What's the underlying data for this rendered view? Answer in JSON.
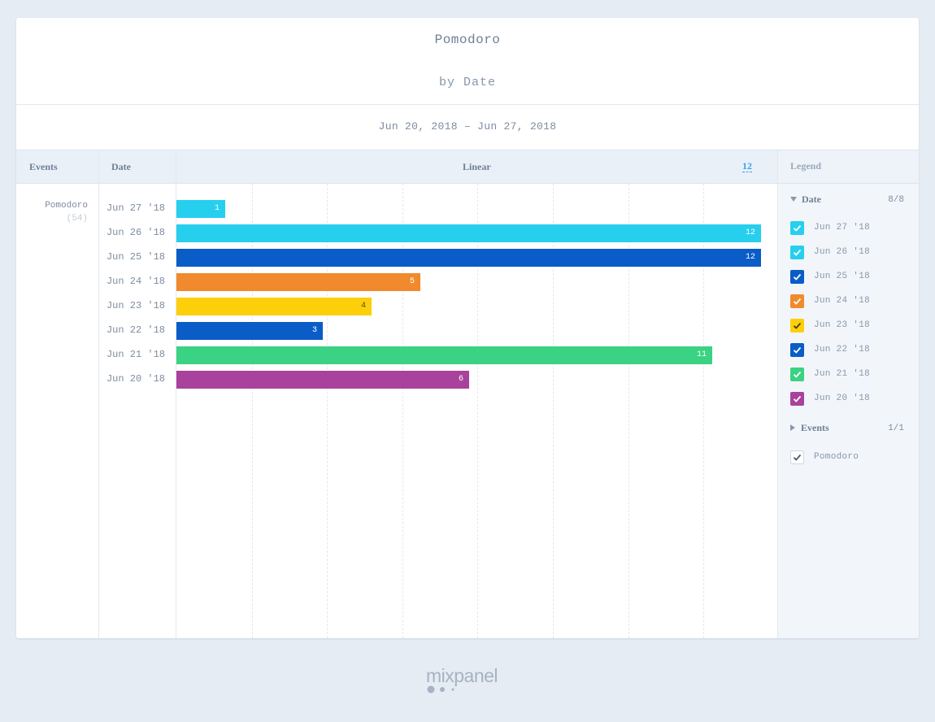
{
  "header": {
    "title": "Pomodoro",
    "subtitle": "by Date",
    "date_range": "Jun 20, 2018 – Jun 27, 2018"
  },
  "columns": {
    "events": "Events",
    "date": "Date",
    "scale": "Linear",
    "max": "12",
    "legend": "Legend"
  },
  "event": {
    "name": "Pomodoro",
    "count": "(54)"
  },
  "chart_data": {
    "type": "bar",
    "orientation": "horizontal",
    "title": "Pomodoro",
    "subtitle": "by Date",
    "categories": [
      "Jun 27 '18",
      "Jun 26 '18",
      "Jun 25 '18",
      "Jun 24 '18",
      "Jun 23 '18",
      "Jun 22 '18",
      "Jun 21 '18",
      "Jun 20 '18"
    ],
    "values": [
      1,
      12,
      12,
      5,
      4,
      3,
      11,
      6
    ],
    "colors": [
      "#26cfee",
      "#26cfee",
      "#0a5cc7",
      "#f08a2c",
      "#fdcf0b",
      "#0a5cc7",
      "#3ad283",
      "#a8429c"
    ],
    "xlim": [
      0,
      12
    ],
    "scale": "linear",
    "grid": true
  },
  "legend": {
    "date_header": "Date",
    "date_count": "8/8",
    "date_items": [
      {
        "label": "Jun 27 '18",
        "color": "#26cfee"
      },
      {
        "label": "Jun 26 '18",
        "color": "#26cfee"
      },
      {
        "label": "Jun 25 '18",
        "color": "#0a5cc7"
      },
      {
        "label": "Jun 24 '18",
        "color": "#f08a2c"
      },
      {
        "label": "Jun 23 '18",
        "color": "#fdcf0b"
      },
      {
        "label": "Jun 22 '18",
        "color": "#0a5cc7"
      },
      {
        "label": "Jun 21 '18",
        "color": "#3ad283"
      },
      {
        "label": "Jun 20 '18",
        "color": "#a8429c"
      }
    ],
    "events_header": "Events",
    "events_count": "1/1",
    "event_items": [
      {
        "label": "Pomodoro"
      }
    ]
  },
  "footer": {
    "logo": "mixpanel"
  }
}
